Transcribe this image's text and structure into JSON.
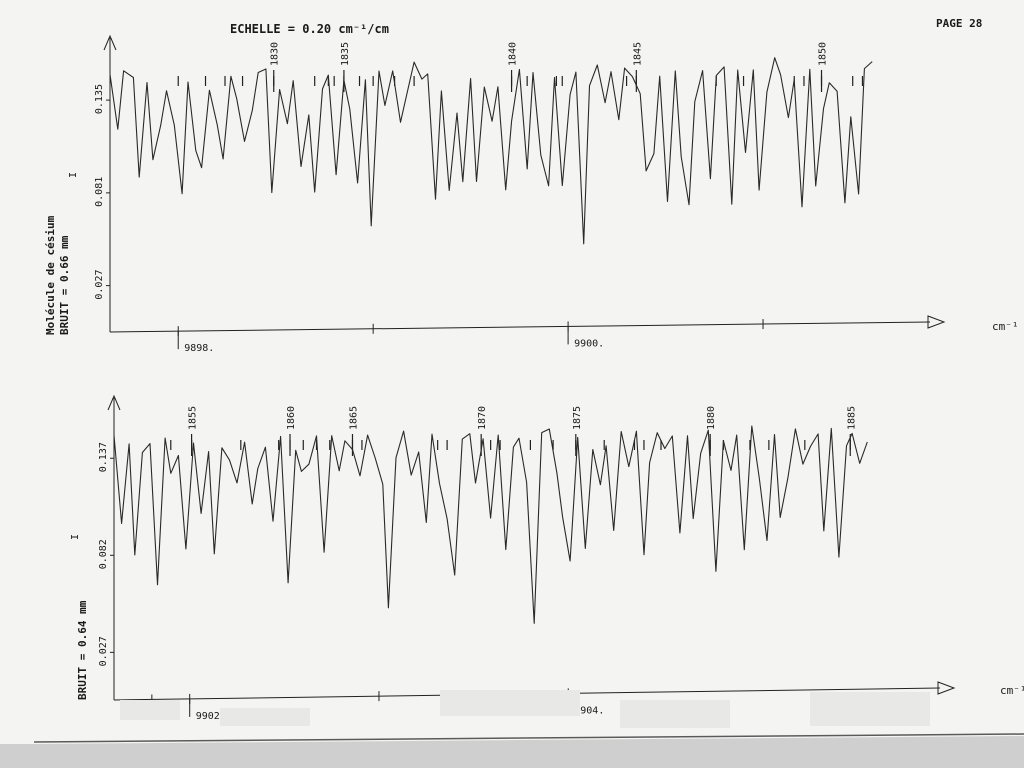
{
  "page": {
    "header": "ECHELLE = 0.20 cm⁻¹/cm",
    "page_label": "PAGE 28"
  },
  "chart_data": [
    {
      "type": "line",
      "title": "",
      "xlabel": "cm⁻¹",
      "ylabel": "I",
      "side_label_1": "Molécule de césium",
      "side_label_2": "BRUIT = 0.66 mm",
      "y_ticks": [
        0.027,
        0.081,
        0.135
      ],
      "y_tick_labels": [
        "0.027",
        "0.081",
        "0.135"
      ],
      "ylim": [
        0.0,
        0.17
      ],
      "xlim": [
        9897.65,
        9901.6
      ],
      "x_ticks": [
        9898,
        9899,
        9900,
        9901
      ],
      "x_labeled_ticks": [
        {
          "value": 9898,
          "label": "9898."
        },
        {
          "value": 9900,
          "label": "9900."
        }
      ],
      "line_numbers": [
        {
          "label": "1830",
          "x": 9898.49
        },
        {
          "label": "1835",
          "x": 9898.85
        },
        {
          "label": "1840",
          "x": 9899.71
        },
        {
          "label": "1845",
          "x": 9900.35
        },
        {
          "label": "1850",
          "x": 9901.3
        }
      ],
      "line_marks": [
        9898.0,
        9898.14,
        9898.24,
        9898.33,
        9898.49,
        9898.7,
        9898.77,
        9898.8,
        9898.85,
        9898.93,
        9899.0,
        9899.11,
        9899.21,
        9899.71,
        9899.79,
        9899.94,
        9899.97,
        9900.3,
        9900.35,
        9900.76,
        9900.9,
        9901.16,
        9901.21,
        9901.3,
        9901.46,
        9901.51
      ],
      "series": [
        {
          "x": [
            9897.65,
            9897.69,
            9897.72,
            9897.77,
            9897.8,
            9897.84,
            9897.87,
            9897.91,
            9897.94,
            9897.98,
            9898.02,
            9898.05,
            9898.09,
            9898.12,
            9898.16,
            9898.2,
            9898.23,
            9898.27,
            9898.3,
            9898.34,
            9898.38,
            9898.41,
            9898.45,
            9898.48,
            9898.52,
            9898.56,
            9898.59,
            9898.63,
            9898.67,
            9898.7,
            9898.74,
            9898.77,
            9898.81,
            9898.85,
            9898.88,
            9898.92,
            9898.96,
            9898.99,
            9899.03,
            9899.06,
            9899.1,
            9899.14,
            9899.17,
            9899.21,
            9899.25,
            9899.28,
            9899.32,
            9899.35,
            9899.39,
            9899.43,
            9899.46,
            9899.5,
            9899.53,
            9899.57,
            9899.61,
            9899.64,
            9899.68,
            9899.71,
            9899.75,
            9899.79,
            9899.82,
            9899.86,
            9899.9,
            9899.93,
            9899.97,
            9900.01,
            9900.04,
            9900.08,
            9900.11,
            9900.15,
            9900.19,
            9900.22,
            9900.26,
            9900.29,
            9900.33,
            9900.37,
            9900.4,
            9900.44,
            9900.47,
            9900.51,
            9900.55,
            9900.58,
            9900.62,
            9900.65,
            9900.69,
            9900.73,
            9900.76,
            9900.8,
            9900.84,
            9900.87,
            9900.91,
            9900.95,
            9900.98,
            9901.02,
            9901.06,
            9901.09,
            9901.13,
            9901.16,
            9901.2,
            9901.24,
            9901.27,
            9901.31,
            9901.34,
            9901.38,
            9901.42,
            9901.45,
            9901.49,
            9901.52,
            9901.56
          ],
          "y": [
            0.15,
            0.118,
            0.152,
            0.148,
            0.09,
            0.145,
            0.1,
            0.12,
            0.14,
            0.12,
            0.08,
            0.145,
            0.105,
            0.095,
            0.14,
            0.12,
            0.1,
            0.148,
            0.135,
            0.11,
            0.128,
            0.15,
            0.152,
            0.08,
            0.14,
            0.12,
            0.145,
            0.095,
            0.125,
            0.08,
            0.14,
            0.148,
            0.09,
            0.145,
            0.128,
            0.085,
            0.145,
            0.06,
            0.15,
            0.13,
            0.15,
            0.12,
            0.135,
            0.155,
            0.145,
            0.148,
            0.075,
            0.138,
            0.08,
            0.125,
            0.085,
            0.145,
            0.085,
            0.14,
            0.12,
            0.14,
            0.08,
            0.12,
            0.15,
            0.092,
            0.148,
            0.1,
            0.082,
            0.145,
            0.082,
            0.135,
            0.148,
            0.048,
            0.14,
            0.152,
            0.13,
            0.148,
            0.12,
            0.15,
            0.145,
            0.135,
            0.09,
            0.1,
            0.145,
            0.072,
            0.148,
            0.098,
            0.07,
            0.13,
            0.148,
            0.085,
            0.145,
            0.15,
            0.07,
            0.148,
            0.1,
            0.148,
            0.078,
            0.135,
            0.155,
            0.145,
            0.12,
            0.142,
            0.068,
            0.148,
            0.08,
            0.125,
            0.14,
            0.135,
            0.07,
            0.12,
            0.075,
            0.148,
            0.152
          ]
        }
      ]
    },
    {
      "type": "line",
      "title": "",
      "xlabel": "cm⁻¹",
      "ylabel": "I",
      "side_label_1": "",
      "side_label_2": "BRUIT = 0.64 mm",
      "y_ticks": [
        0.027,
        0.082,
        0.137
      ],
      "y_tick_labels": [
        "0.027",
        "0.082",
        "0.137"
      ],
      "ylim": [
        0.0,
        0.17
      ],
      "xlim": [
        9901.6,
        9905.7
      ],
      "x_ticks": [
        9901.8,
        9902,
        9903,
        9904
      ],
      "x_labeled_ticks": [
        {
          "value": 9902,
          "label": "9902."
        },
        {
          "value": 9904,
          "label": "9904."
        }
      ],
      "line_numbers": [
        {
          "label": "1855",
          "x": 9902.01
        },
        {
          "label": "1860",
          "x": 9902.53
        },
        {
          "label": "1865",
          "x": 9902.86
        },
        {
          "label": "1870",
          "x": 9903.54
        },
        {
          "label": "1875",
          "x": 9904.04
        },
        {
          "label": "1880",
          "x": 9904.75
        },
        {
          "label": "1885",
          "x": 9905.49
        }
      ],
      "line_marks": [
        9901.9,
        9902.01,
        9902.27,
        9902.47,
        9902.53,
        9902.6,
        9902.67,
        9902.74,
        9902.86,
        9902.91,
        9903.31,
        9903.36,
        9903.54,
        9903.59,
        9903.64,
        9903.8,
        9903.92,
        9904.04,
        9904.19,
        9904.35,
        9904.4,
        9904.49,
        9904.75,
        9904.82,
        9904.96,
        9905.06,
        9905.25,
        9905.49
      ],
      "series": [
        {
          "x": [
            9901.6,
            9901.64,
            9901.68,
            9901.71,
            9901.75,
            9901.79,
            9901.83,
            9901.87,
            9901.9,
            9901.94,
            9901.98,
            9902.02,
            9902.06,
            9902.1,
            9902.13,
            9902.17,
            9902.21,
            9902.25,
            9902.29,
            9902.33,
            9902.36,
            9902.4,
            9902.44,
            9902.48,
            9902.52,
            9902.56,
            9902.59,
            9902.63,
            9902.67,
            9902.71,
            9902.75,
            9902.79,
            9902.82,
            9902.86,
            9902.9,
            9902.94,
            9902.98,
            9903.02,
            9903.05,
            9903.09,
            9903.13,
            9903.17,
            9903.21,
            9903.25,
            9903.28,
            9903.32,
            9903.36,
            9903.4,
            9903.44,
            9903.48,
            9903.51,
            9903.55,
            9903.59,
            9903.63,
            9903.67,
            9903.71,
            9903.74,
            9903.78,
            9903.82,
            9903.86,
            9903.9,
            9903.94,
            9903.97,
            9904.01,
            9904.05,
            9904.09,
            9904.13,
            9904.17,
            9904.2,
            9904.24,
            9904.28,
            9904.32,
            9904.36,
            9904.4,
            9904.43,
            9904.47,
            9904.51,
            9904.55,
            9904.59,
            9904.63,
            9904.66,
            9904.7,
            9904.74,
            9904.78,
            9904.82,
            9904.86,
            9904.89,
            9904.93,
            9904.97,
            9905.01,
            9905.05,
            9905.09,
            9905.12,
            9905.16,
            9905.2,
            9905.24,
            9905.28,
            9905.32,
            9905.35,
            9905.39,
            9905.43,
            9905.47,
            9905.5,
            9905.54,
            9905.58
          ],
          "y": [
            0.15,
            0.1,
            0.145,
            0.082,
            0.14,
            0.145,
            0.065,
            0.148,
            0.128,
            0.138,
            0.085,
            0.145,
            0.105,
            0.14,
            0.082,
            0.142,
            0.135,
            0.122,
            0.145,
            0.11,
            0.13,
            0.142,
            0.1,
            0.148,
            0.065,
            0.14,
            0.128,
            0.132,
            0.148,
            0.082,
            0.148,
            0.128,
            0.145,
            0.14,
            0.125,
            0.148,
            0.135,
            0.12,
            0.05,
            0.135,
            0.15,
            0.125,
            0.138,
            0.098,
            0.148,
            0.12,
            0.1,
            0.068,
            0.145,
            0.148,
            0.12,
            0.145,
            0.1,
            0.147,
            0.082,
            0.14,
            0.145,
            0.12,
            0.04,
            0.148,
            0.15,
            0.125,
            0.1,
            0.075,
            0.145,
            0.082,
            0.138,
            0.118,
            0.14,
            0.092,
            0.148,
            0.128,
            0.148,
            0.078,
            0.13,
            0.147,
            0.138,
            0.145,
            0.09,
            0.145,
            0.098,
            0.135,
            0.148,
            0.068,
            0.142,
            0.125,
            0.145,
            0.08,
            0.15,
            0.12,
            0.085,
            0.145,
            0.098,
            0.12,
            0.148,
            0.128,
            0.138,
            0.145,
            0.09,
            0.148,
            0.075,
            0.138,
            0.145,
            0.128,
            0.14
          ]
        }
      ]
    }
  ]
}
